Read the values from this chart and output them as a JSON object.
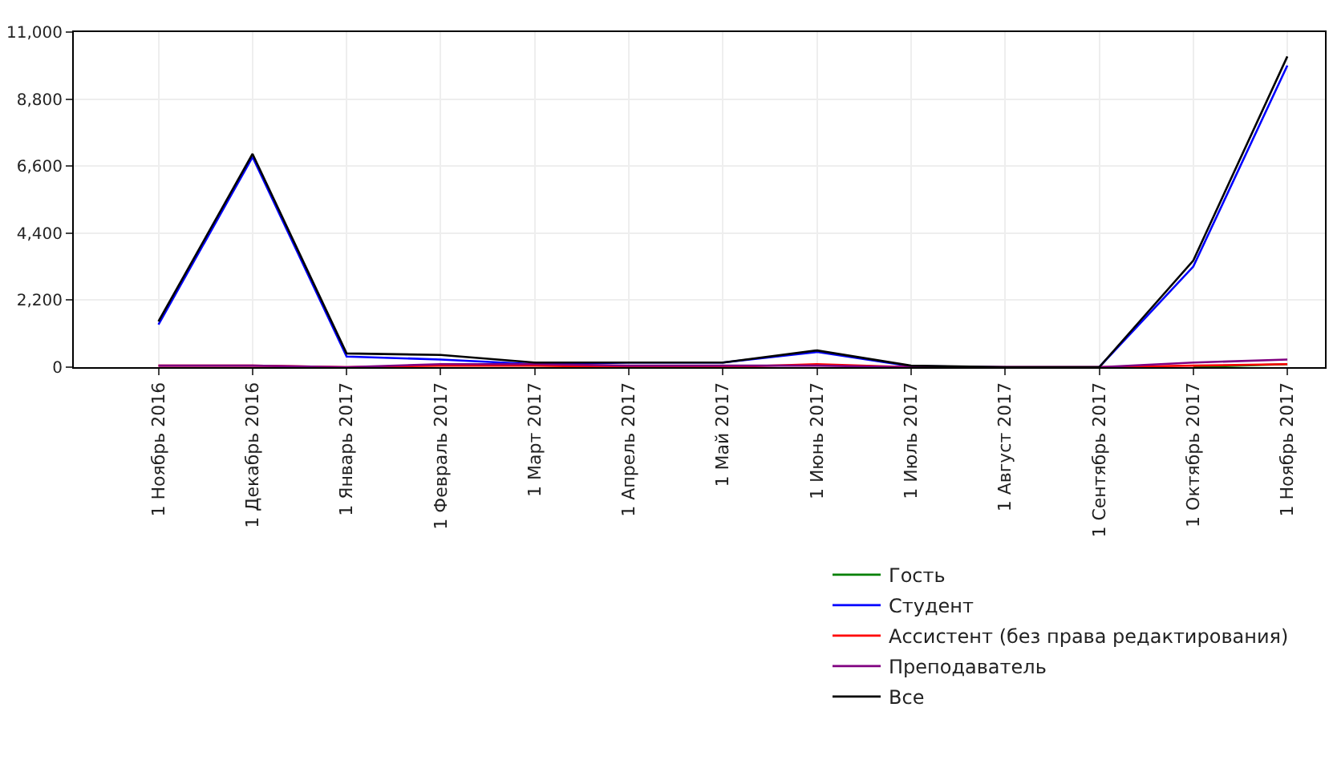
{
  "chart_data": {
    "type": "line",
    "categories": [
      "1 Ноябрь 2016",
      "1 Декабрь 2016",
      "1 Январь 2017",
      "1 Февраль 2017",
      "1 Март 2017",
      "1 Апрель 2017",
      "1 Май 2017",
      "1 Июнь 2017",
      "1 Июль 2017",
      "1 Август 2017",
      "1 Сентябрь 2017",
      "1 Октябрь 2017",
      "1 Ноябрь 2017"
    ],
    "series": [
      {
        "name": "Гость",
        "color": "#008000",
        "values": [
          null,
          null,
          null,
          null,
          null,
          null,
          null,
          null,
          null,
          null,
          null,
          0,
          100
        ]
      },
      {
        "name": "Студент",
        "color": "#0000ff",
        "values": [
          1400,
          6900,
          350,
          250,
          100,
          150,
          150,
          500,
          30,
          0,
          0,
          3300,
          9900
        ]
      },
      {
        "name": "Ассистент (без права редактирования)",
        "color": "#ff0000",
        "values": [
          50,
          50,
          0,
          50,
          50,
          0,
          0,
          100,
          0,
          0,
          0,
          50,
          100
        ]
      },
      {
        "name": "Преподаватель",
        "color": "#800080",
        "values": [
          50,
          50,
          0,
          100,
          100,
          50,
          50,
          50,
          0,
          0,
          0,
          150,
          250
        ]
      },
      {
        "name": "Все",
        "color": "#000000",
        "values": [
          1500,
          7000,
          450,
          400,
          150,
          150,
          150,
          550,
          50,
          0,
          0,
          3500,
          10200
        ]
      }
    ],
    "ylim": [
      0,
      11000
    ],
    "yticks": [
      0,
      {
        "value": 2200,
        "label": "2,200"
      },
      {
        "value": 4400,
        "label": "4,400"
      },
      {
        "value": 6600,
        "label": "6,600"
      },
      {
        "value": 8800,
        "label": "8,800"
      },
      {
        "value": 11000,
        "label": "11,000"
      }
    ],
    "grid": true,
    "legend": "bottom right",
    "marker": "none",
    "line_style": "solid"
  }
}
